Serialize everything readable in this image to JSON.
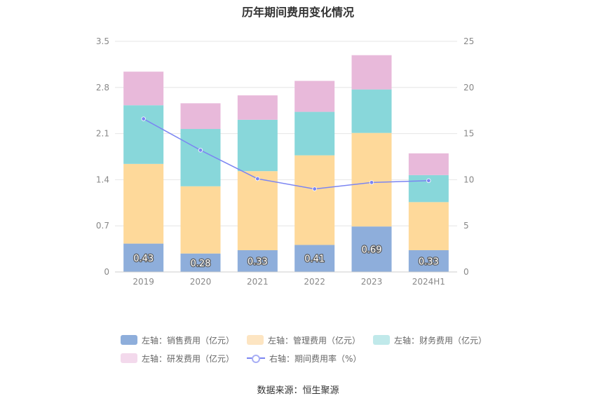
{
  "chart_data": {
    "type": "bar",
    "title": "历年期间费用变化情况",
    "categories": [
      "2019",
      "2020",
      "2021",
      "2022",
      "2023",
      "2024H1"
    ],
    "series": [
      {
        "name": "左轴：销售费用（亿元）",
        "values": [
          0.43,
          0.28,
          0.33,
          0.41,
          0.69,
          0.33
        ],
        "color": "#8eaedb",
        "labels": [
          "0.43",
          "0.28",
          "0.33",
          "0.41",
          "0.69",
          "0.33"
        ]
      },
      {
        "name": "左轴：管理费用（亿元）",
        "values": [
          1.21,
          1.02,
          1.2,
          1.36,
          1.42,
          0.73
        ],
        "color": "#fed99a"
      },
      {
        "name": "左轴：财务费用（亿元）",
        "values": [
          0.89,
          0.87,
          0.78,
          0.66,
          0.66,
          0.41
        ],
        "color": "#88d7da"
      },
      {
        "name": "左轴：研发费用（亿元）",
        "values": [
          0.51,
          0.39,
          0.37,
          0.47,
          0.52,
          0.33
        ],
        "color": "#e8b9da"
      }
    ],
    "line_series": {
      "name": "右轴：期间费用率（%）",
      "values": [
        16.6,
        13.2,
        10.1,
        9.0,
        9.7,
        9.9
      ],
      "color": "#7b85f2"
    },
    "y_left": {
      "ticks": [
        "0",
        "0.7",
        "1.4",
        "2.1",
        "2.8",
        "3.5"
      ],
      "ylim": [
        0,
        3.5
      ]
    },
    "y_right": {
      "ticks": [
        "0",
        "5",
        "10",
        "15",
        "20",
        "25"
      ],
      "ylim": [
        0,
        25
      ]
    },
    "legend_position": "bottom",
    "grid": true
  },
  "legend_swatch_colors": [
    "#8eaedb",
    "#fde5c2",
    "#c0e9ea",
    "#f3d9ec"
  ],
  "source": "数据来源：恒生聚源"
}
